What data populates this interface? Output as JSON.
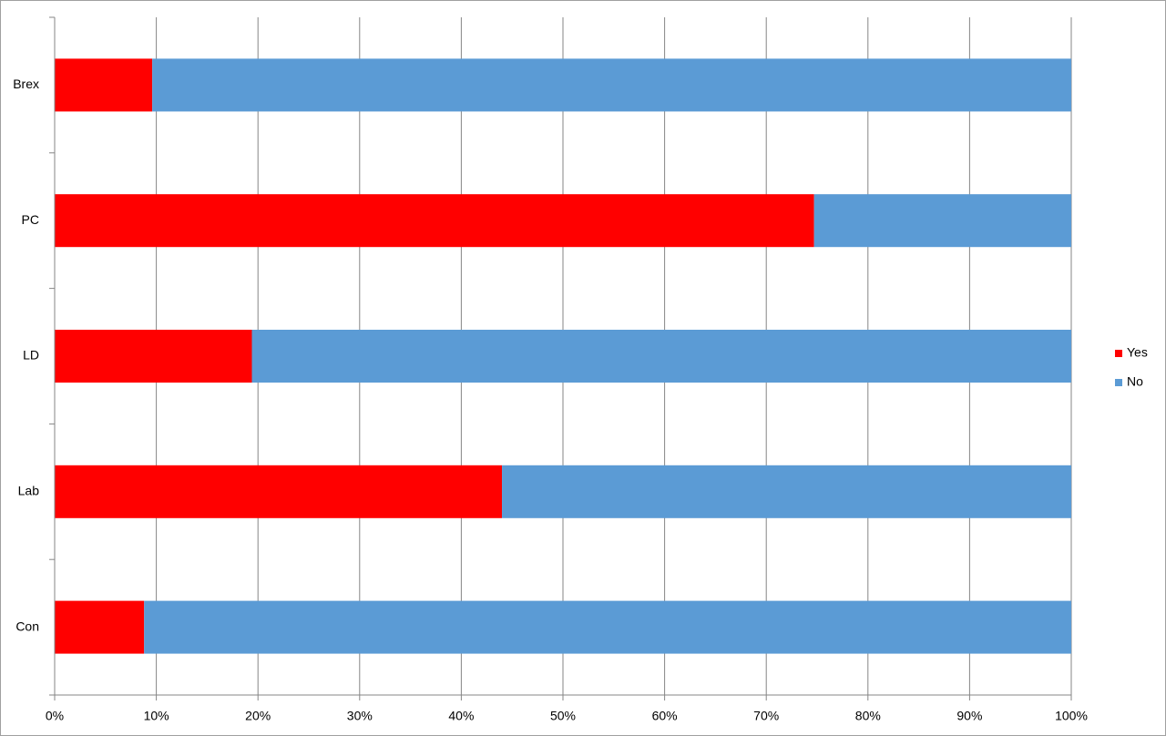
{
  "chart_data": {
    "type": "stacked-bar-horizontal",
    "categories": [
      "Con",
      "Lab",
      "LD",
      "PC",
      "Brex"
    ],
    "series": [
      {
        "name": "Yes",
        "color": "#ff0000",
        "values": [
          8.8,
          44.0,
          19.4,
          74.7,
          9.6
        ]
      },
      {
        "name": "No",
        "color": "#5b9bd5",
        "values": [
          91.2,
          56.0,
          80.6,
          25.3,
          90.4
        ]
      }
    ],
    "xlim": [
      0,
      100
    ],
    "xticks": [
      {
        "value": 0,
        "label": "0%"
      },
      {
        "value": 10,
        "label": "10%"
      },
      {
        "value": 20,
        "label": "20%"
      },
      {
        "value": 30,
        "label": "30%"
      },
      {
        "value": 40,
        "label": "40%"
      },
      {
        "value": 50,
        "label": "50%"
      },
      {
        "value": 60,
        "label": "60%"
      },
      {
        "value": 70,
        "label": "70%"
      },
      {
        "value": 80,
        "label": "80%"
      },
      {
        "value": 90,
        "label": "90%"
      },
      {
        "value": 100,
        "label": "100%"
      }
    ],
    "grid": true,
    "legend": "right"
  }
}
